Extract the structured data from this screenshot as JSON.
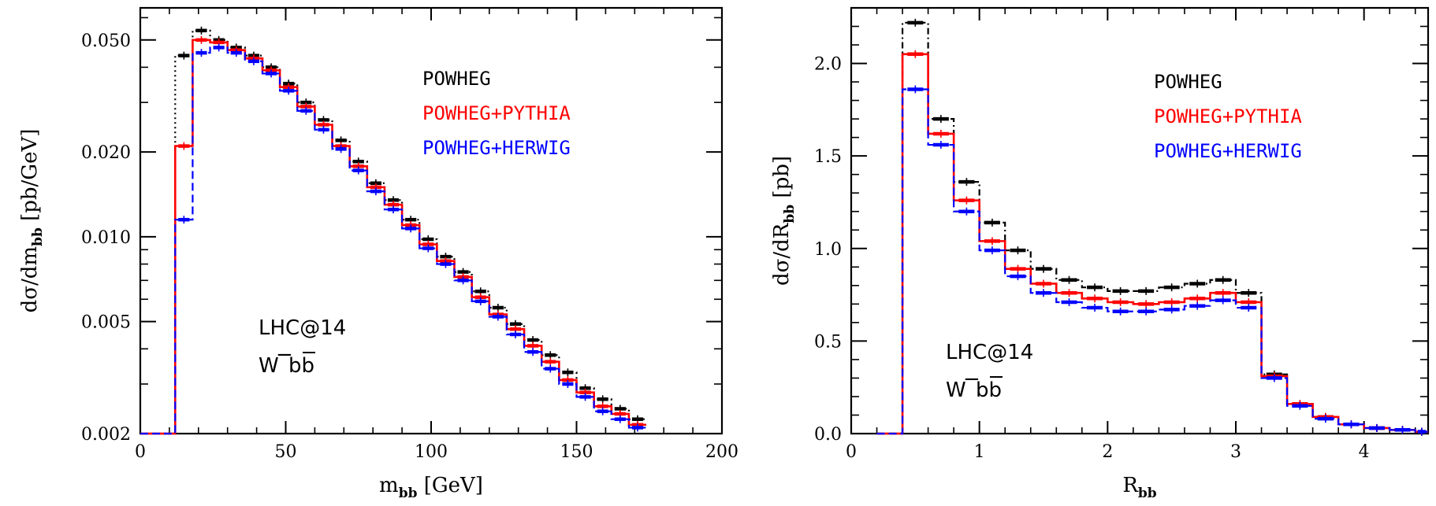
{
  "chart_data": [
    {
      "type": "line",
      "panel": "left",
      "xlabel": "m",
      "xlabel_sub": "bb",
      "xlabel_unit": "[GeV]",
      "ylabel_prefix": "dσ/dm",
      "ylabel_sub": "bb",
      "ylabel_unit": "[pb/GeV]",
      "xlim": [
        0,
        200
      ],
      "ylim": [
        0.002,
        0.065
      ],
      "yscale": "log",
      "xticks": [
        0,
        50,
        100,
        150,
        200
      ],
      "xtick_labels": [
        "0",
        "50",
        "100",
        "150",
        "200"
      ],
      "yticks": [
        0.002,
        0.005,
        0.01,
        0.02,
        0.05
      ],
      "ytick_labels": [
        "0.002",
        "0.005",
        "0.010",
        "0.020",
        "0.050"
      ],
      "annotation": [
        "LHC@14",
        "W",
        "−",
        "bb"
      ],
      "legend_position": "top-right",
      "bin_edges": [
        12,
        18,
        24,
        30,
        36,
        42,
        48,
        54,
        60,
        66,
        72,
        78,
        84,
        90,
        96,
        102,
        108,
        114,
        120,
        126,
        132,
        138,
        144,
        150,
        156,
        162,
        168,
        174
      ],
      "series": [
        {
          "name": "POWHEG",
          "color": "#000000",
          "dash": "2,4",
          "x_start": 0,
          "values": [
            0.044,
            0.054,
            0.05,
            0.047,
            0.044,
            0.04,
            0.035,
            0.03,
            0.026,
            0.022,
            0.0185,
            0.0155,
            0.0135,
            0.0115,
            0.0098,
            0.0085,
            0.0075,
            0.0064,
            0.0056,
            0.0049,
            0.0043,
            0.0038,
            0.0033,
            0.0029,
            0.00265,
            0.00245,
            0.00225
          ]
        },
        {
          "name": "POWHEG+PYTHIA",
          "color": "#ff0000",
          "dash": "",
          "x_start": 0,
          "values": [
            0.021,
            0.05,
            0.049,
            0.046,
            0.043,
            0.039,
            0.034,
            0.029,
            0.025,
            0.021,
            0.0178,
            0.015,
            0.013,
            0.011,
            0.0094,
            0.0082,
            0.0072,
            0.0061,
            0.0053,
            0.0047,
            0.0041,
            0.0036,
            0.0031,
            0.0028,
            0.0025,
            0.00235,
            0.00215
          ]
        },
        {
          "name": "POWHEG+HERWIG",
          "color": "#0000ff",
          "dash": "10,5",
          "x_start": 0,
          "values": [
            0.0115,
            0.045,
            0.047,
            0.045,
            0.042,
            0.038,
            0.033,
            0.028,
            0.024,
            0.0205,
            0.0172,
            0.0145,
            0.0125,
            0.0107,
            0.0091,
            0.008,
            0.007,
            0.0059,
            0.0052,
            0.0045,
            0.0039,
            0.0034,
            0.003,
            0.0027,
            0.0024,
            0.00225,
            0.0021
          ]
        }
      ]
    },
    {
      "type": "line",
      "panel": "right",
      "xlabel": "R",
      "xlabel_sub": "bb",
      "xlabel_unit": "",
      "ylabel_prefix": "dσ/dR",
      "ylabel_sub": "bb",
      "ylabel_unit": "[pb]",
      "xlim": [
        0,
        4.5
      ],
      "ylim": [
        0,
        2.3
      ],
      "yscale": "linear",
      "xticks": [
        0,
        1,
        2,
        3,
        4
      ],
      "xtick_labels": [
        "0",
        "1",
        "2",
        "3",
        "4"
      ],
      "yticks": [
        0,
        0.5,
        1.0,
        1.5,
        2.0
      ],
      "ytick_labels": [
        "0.0",
        "0.5",
        "1.0",
        "1.5",
        "2.0"
      ],
      "annotation": [
        "LHC@14",
        "W",
        "−",
        "bb"
      ],
      "legend_position": "top-right",
      "bin_edges": [
        0.2,
        0.4,
        0.6,
        0.8,
        1.0,
        1.2,
        1.4,
        1.6,
        1.8,
        2.0,
        2.2,
        2.4,
        2.6,
        2.8,
        3.0,
        3.2,
        3.4,
        3.6,
        3.8,
        4.0,
        4.2,
        4.4,
        4.5
      ],
      "series": [
        {
          "name": "POWHEG",
          "color": "#000000",
          "dash": "8,4,2,4",
          "values": [
            0.0,
            2.22,
            1.7,
            1.36,
            1.14,
            0.99,
            0.89,
            0.83,
            0.79,
            0.77,
            0.77,
            0.79,
            0.81,
            0.83,
            0.76,
            0.32,
            0.16,
            0.09,
            0.05,
            0.03,
            0.02,
            0.01
          ]
        },
        {
          "name": "POWHEG+PYTHIA",
          "color": "#ff0000",
          "dash": "",
          "values": [
            0.0,
            2.05,
            1.62,
            1.26,
            1.04,
            0.89,
            0.81,
            0.76,
            0.73,
            0.71,
            0.7,
            0.71,
            0.73,
            0.76,
            0.71,
            0.31,
            0.16,
            0.09,
            0.05,
            0.03,
            0.02,
            0.01
          ]
        },
        {
          "name": "POWHEG+HERWIG",
          "color": "#0000ff",
          "dash": "10,5",
          "values": [
            0.0,
            1.86,
            1.56,
            1.2,
            0.99,
            0.85,
            0.76,
            0.71,
            0.68,
            0.66,
            0.66,
            0.67,
            0.69,
            0.72,
            0.68,
            0.3,
            0.15,
            0.08,
            0.05,
            0.03,
            0.02,
            0.01
          ]
        }
      ]
    }
  ]
}
